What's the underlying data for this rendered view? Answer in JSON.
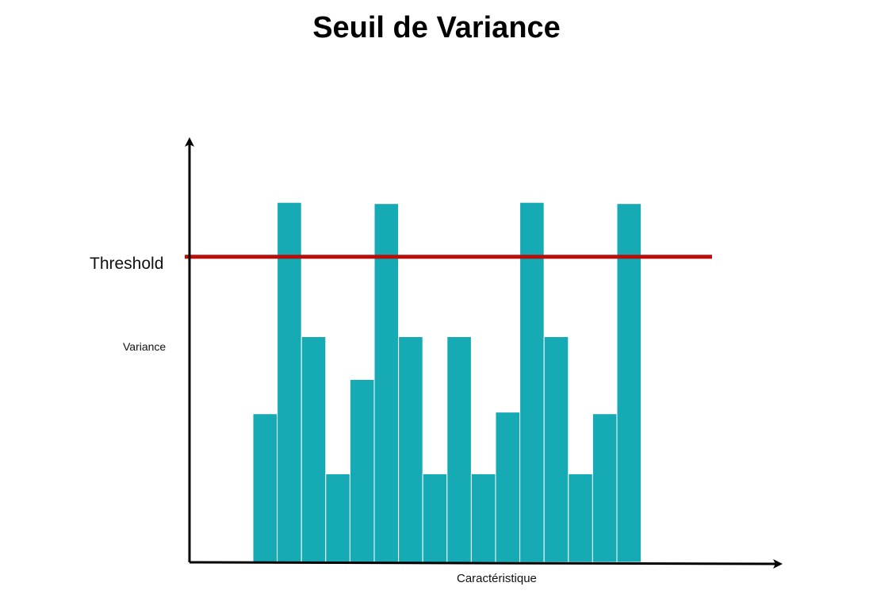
{
  "chart_data": {
    "type": "bar",
    "title": "Seuil de Variance",
    "xlabel": "Caractéristique",
    "ylabel": "Variance",
    "threshold_label": "Threshold",
    "values": [
      2.6,
      6.3,
      3.95,
      1.55,
      3.2,
      6.28,
      3.95,
      1.55,
      3.95,
      1.55,
      2.63,
      6.3,
      3.95,
      1.55,
      2.6,
      6.28
    ],
    "threshold": 5.35,
    "ylim": [
      0,
      7.4
    ],
    "grid": false,
    "legend": "none",
    "colors": {
      "bar": "#15aab4",
      "threshold": "#b80f0a",
      "axis": "#000000"
    }
  }
}
